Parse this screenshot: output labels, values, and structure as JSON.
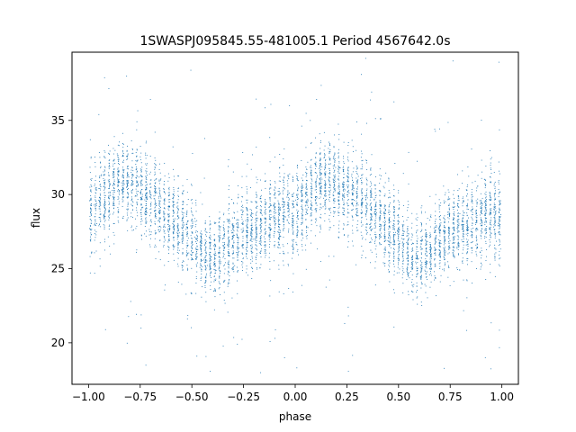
{
  "chart_data": {
    "type": "scatter",
    "title": "1SWASPJ095845.55-481005.1 Period 4567642.0s",
    "xlabel": "phase",
    "ylabel": "flux",
    "xlim": [
      -1.08,
      1.08
    ],
    "ylim": [
      17.2,
      39.6
    ],
    "xticks": [
      -1.0,
      -0.75,
      -0.5,
      -0.25,
      0.0,
      0.25,
      0.5,
      0.75,
      1.0
    ],
    "xtick_labels": [
      "−1.00",
      "−0.75",
      "−0.50",
      "−0.25",
      "0.00",
      "0.25",
      "0.50",
      "0.75",
      "1.00"
    ],
    "yticks": [
      20,
      25,
      30,
      35
    ],
    "ytick_labels": [
      "20",
      "25",
      "30",
      "35"
    ],
    "grid": false,
    "marker_color": "#1f77b4",
    "series": [
      {
        "phase_range": [
          -1.0,
          1.0
        ],
        "profile": {
          "phase": [
            0.0,
            0.05,
            0.1,
            0.15,
            0.2,
            0.25,
            0.3,
            0.35,
            0.4,
            0.45,
            0.5,
            0.55,
            0.6,
            0.65,
            0.7,
            0.75,
            0.8,
            0.85,
            0.9,
            0.95,
            1.0
          ],
          "median_flux": [
            28.5,
            29.5,
            30.5,
            31.0,
            30.8,
            30.0,
            29.8,
            29.0,
            28.5,
            27.8,
            27.0,
            26.0,
            25.6,
            26.2,
            27.0,
            27.5,
            27.8,
            28.0,
            28.5,
            28.8,
            28.5
          ],
          "spread": [
            2.4,
            2.4,
            2.3,
            2.2,
            2.2,
            2.3,
            2.4,
            2.2,
            2.1,
            2.1,
            2.0,
            2.0,
            1.9,
            2.0,
            2.1,
            2.2,
            2.2,
            2.2,
            2.3,
            2.4,
            2.4
          ]
        }
      }
    ]
  }
}
